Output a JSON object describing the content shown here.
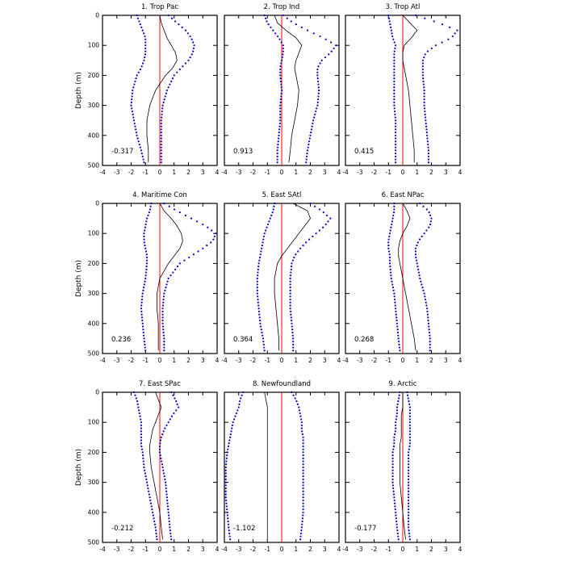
{
  "colors": {
    "zero_line": "#ff0000",
    "mean_line": "#000000",
    "envelope_dots": "#0000cc"
  },
  "shared": {
    "ylabel": "Depth (m)",
    "xlim": [
      -4,
      4
    ],
    "ylim": [
      0,
      500
    ],
    "xticks": [
      "-4",
      "-3",
      "-2",
      "-1",
      "0",
      "1",
      "2",
      "3",
      "4"
    ],
    "yticks": [
      "0",
      "100",
      "200",
      "300",
      "400",
      "500"
    ]
  },
  "chart_data": [
    {
      "type": "line",
      "title": "1. Trop Pac",
      "correlation": "-0.317",
      "depth": [
        0,
        25,
        50,
        75,
        100,
        125,
        150,
        175,
        200,
        250,
        300,
        350,
        400,
        450,
        490
      ],
      "mean": [
        0.0,
        0.1,
        0.3,
        0.5,
        0.8,
        1.1,
        1.2,
        0.9,
        0.4,
        -0.3,
        -0.7,
        -0.9,
        -0.9,
        -0.8,
        -0.8
      ],
      "lower": [
        -1.6,
        -1.4,
        -1.2,
        -1.0,
        -1.0,
        -1.0,
        -1.1,
        -1.3,
        -1.6,
        -1.9,
        -2.0,
        -1.8,
        -1.6,
        -1.3,
        -1.1
      ],
      "upper": [
        0.6,
        1.2,
        1.8,
        2.2,
        2.4,
        2.3,
        2.0,
        1.5,
        1.0,
        0.5,
        0.2,
        0.1,
        0.1,
        0.1,
        0.1
      ]
    },
    {
      "type": "line",
      "title": "2. Trop Ind",
      "correlation": "0.913",
      "depth": [
        0,
        25,
        50,
        75,
        100,
        125,
        150,
        175,
        200,
        250,
        300,
        350,
        400,
        450,
        490
      ],
      "mean": [
        -0.5,
        -0.3,
        0.3,
        1.0,
        1.4,
        1.2,
        1.0,
        0.9,
        1.0,
        1.2,
        1.1,
        0.9,
        0.7,
        0.6,
        0.5
      ],
      "lower": [
        -1.2,
        -1.0,
        -0.6,
        -0.2,
        0.1,
        0.1,
        0.0,
        -0.1,
        -0.1,
        0.0,
        -0.1,
        -0.1,
        -0.2,
        -0.3,
        -0.3
      ],
      "upper": [
        0.1,
        0.8,
        1.8,
        2.9,
        3.8,
        3.4,
        2.8,
        2.5,
        2.5,
        2.6,
        2.5,
        2.2,
        2.0,
        1.8,
        1.7
      ]
    },
    {
      "type": "line",
      "title": "3. Trop Atl",
      "correlation": "0.415",
      "depth": [
        0,
        25,
        50,
        75,
        100,
        125,
        150,
        175,
        200,
        250,
        300,
        350,
        400,
        450,
        490
      ],
      "mean": [
        0.0,
        0.5,
        1.0,
        0.6,
        0.1,
        0.0,
        0.0,
        0.1,
        0.2,
        0.4,
        0.5,
        0.6,
        0.7,
        0.8,
        0.8
      ],
      "lower": [
        -1.0,
        -0.9,
        -0.8,
        -0.7,
        -0.5,
        -0.6,
        -0.6,
        -0.6,
        -0.6,
        -0.6,
        -0.6,
        -0.5,
        -0.5,
        -0.5,
        -0.5
      ],
      "upper": [
        0.9,
        2.5,
        3.8,
        3.4,
        2.3,
        1.6,
        1.4,
        1.4,
        1.4,
        1.5,
        1.5,
        1.6,
        1.7,
        1.8,
        1.8
      ]
    },
    {
      "type": "line",
      "title": "4. Maritime Con",
      "correlation": "0.236",
      "depth": [
        0,
        25,
        50,
        75,
        100,
        125,
        150,
        175,
        200,
        250,
        300,
        350,
        400,
        450,
        490
      ],
      "mean": [
        0.0,
        0.3,
        0.8,
        1.2,
        1.5,
        1.6,
        1.4,
        1.0,
        0.6,
        0.0,
        -0.2,
        -0.2,
        -0.1,
        -0.1,
        -0.1
      ],
      "lower": [
        -0.6,
        -0.7,
        -0.9,
        -1.0,
        -1.1,
        -1.1,
        -1.0,
        -0.9,
        -0.9,
        -1.0,
        -1.2,
        -1.3,
        -1.2,
        -1.1,
        -1.0
      ],
      "upper": [
        0.3,
        1.2,
        2.2,
        3.2,
        3.9,
        3.7,
        3.0,
        2.2,
        1.4,
        0.6,
        0.3,
        0.2,
        0.2,
        0.3,
        0.3
      ]
    },
    {
      "type": "line",
      "title": "5. East SAtl",
      "correlation": "0.364",
      "depth": [
        0,
        25,
        50,
        75,
        100,
        125,
        150,
        175,
        200,
        250,
        300,
        350,
        400,
        450,
        490
      ],
      "mean": [
        0.8,
        1.8,
        2.0,
        1.6,
        1.2,
        0.8,
        0.4,
        0.0,
        -0.3,
        -0.5,
        -0.5,
        -0.4,
        -0.3,
        -0.2,
        -0.2
      ],
      "lower": [
        -0.5,
        -0.6,
        -0.8,
        -1.0,
        -1.2,
        -1.3,
        -1.4,
        -1.5,
        -1.6,
        -1.7,
        -1.7,
        -1.6,
        -1.5,
        -1.3,
        -1.2
      ],
      "upper": [
        2.0,
        2.8,
        3.4,
        3.0,
        2.4,
        1.8,
        1.3,
        0.9,
        0.7,
        0.6,
        0.6,
        0.6,
        0.7,
        0.8,
        0.8
      ]
    },
    {
      "type": "line",
      "title": "6. East NPac",
      "correlation": "0.268",
      "depth": [
        0,
        25,
        50,
        75,
        100,
        125,
        150,
        175,
        200,
        250,
        300,
        350,
        400,
        450,
        490
      ],
      "mean": [
        0.0,
        0.3,
        0.5,
        0.3,
        0.0,
        -0.2,
        -0.3,
        -0.3,
        -0.2,
        0.0,
        0.2,
        0.4,
        0.6,
        0.8,
        0.9
      ],
      "lower": [
        -0.6,
        -0.6,
        -0.7,
        -0.8,
        -0.9,
        -1.0,
        -1.0,
        -0.9,
        -0.9,
        -0.8,
        -0.6,
        -0.5,
        -0.4,
        -0.3,
        -0.2
      ],
      "upper": [
        1.2,
        1.8,
        2.0,
        1.9,
        1.5,
        1.1,
        0.9,
        0.9,
        1.0,
        1.2,
        1.5,
        1.7,
        1.8,
        1.9,
        1.9
      ]
    },
    {
      "type": "line",
      "title": "7. East SPac",
      "correlation": "-0.212",
      "depth": [
        0,
        25,
        50,
        75,
        100,
        125,
        150,
        175,
        200,
        250,
        300,
        350,
        400,
        450,
        490
      ],
      "mean": [
        -0.3,
        -0.1,
        0.1,
        -0.1,
        -0.3,
        -0.5,
        -0.6,
        -0.7,
        -0.7,
        -0.6,
        -0.4,
        -0.2,
        0.0,
        0.1,
        0.2
      ],
      "lower": [
        -1.8,
        -1.6,
        -1.5,
        -1.4,
        -1.3,
        -1.3,
        -1.3,
        -1.3,
        -1.2,
        -1.1,
        -0.9,
        -0.7,
        -0.5,
        -0.3,
        -0.2
      ],
      "upper": [
        0.8,
        1.1,
        1.3,
        0.9,
        0.6,
        0.3,
        0.1,
        0.0,
        0.0,
        0.2,
        0.4,
        0.5,
        0.6,
        0.7,
        0.8
      ]
    },
    {
      "type": "line",
      "title": "8. Newfoundland",
      "correlation": "-1.102",
      "depth": [
        0,
        25,
        50,
        75,
        100,
        125,
        150,
        175,
        200,
        250,
        300,
        350,
        400,
        450,
        490
      ],
      "mean": [
        -1.2,
        -1.1,
        -1.0,
        -1.0,
        -1.0,
        -1.0,
        -1.0,
        -1.0,
        -1.0,
        -1.0,
        -1.0,
        -1.0,
        -1.0,
        -1.0,
        -1.0
      ],
      "lower": [
        -2.7,
        -2.9,
        -3.0,
        -3.2,
        -3.4,
        -3.5,
        -3.6,
        -3.7,
        -3.8,
        -3.9,
        -3.9,
        -3.9,
        -3.8,
        -3.7,
        -3.6
      ],
      "upper": [
        0.7,
        1.0,
        1.2,
        1.3,
        1.4,
        1.4,
        1.5,
        1.5,
        1.5,
        1.5,
        1.5,
        1.5,
        1.5,
        1.4,
        1.3
      ]
    },
    {
      "type": "line",
      "title": "9. Arctic",
      "correlation": "-0.177",
      "depth": [
        0,
        25,
        50,
        75,
        100,
        125,
        150,
        175,
        200,
        250,
        300,
        350,
        400,
        450,
        490
      ],
      "mean": [
        0.0,
        0.0,
        0.0,
        -0.1,
        -0.1,
        -0.1,
        -0.1,
        -0.2,
        -0.2,
        -0.2,
        -0.2,
        -0.1,
        0.0,
        0.1,
        0.2
      ],
      "lower": [
        -0.2,
        -0.3,
        -0.4,
        -0.4,
        -0.5,
        -0.5,
        -0.6,
        -0.6,
        -0.7,
        -0.7,
        -0.7,
        -0.6,
        -0.5,
        -0.4,
        -0.3
      ],
      "upper": [
        0.3,
        0.4,
        0.5,
        0.5,
        0.5,
        0.5,
        0.5,
        0.5,
        0.4,
        0.4,
        0.4,
        0.4,
        0.4,
        0.4,
        0.5
      ]
    }
  ]
}
